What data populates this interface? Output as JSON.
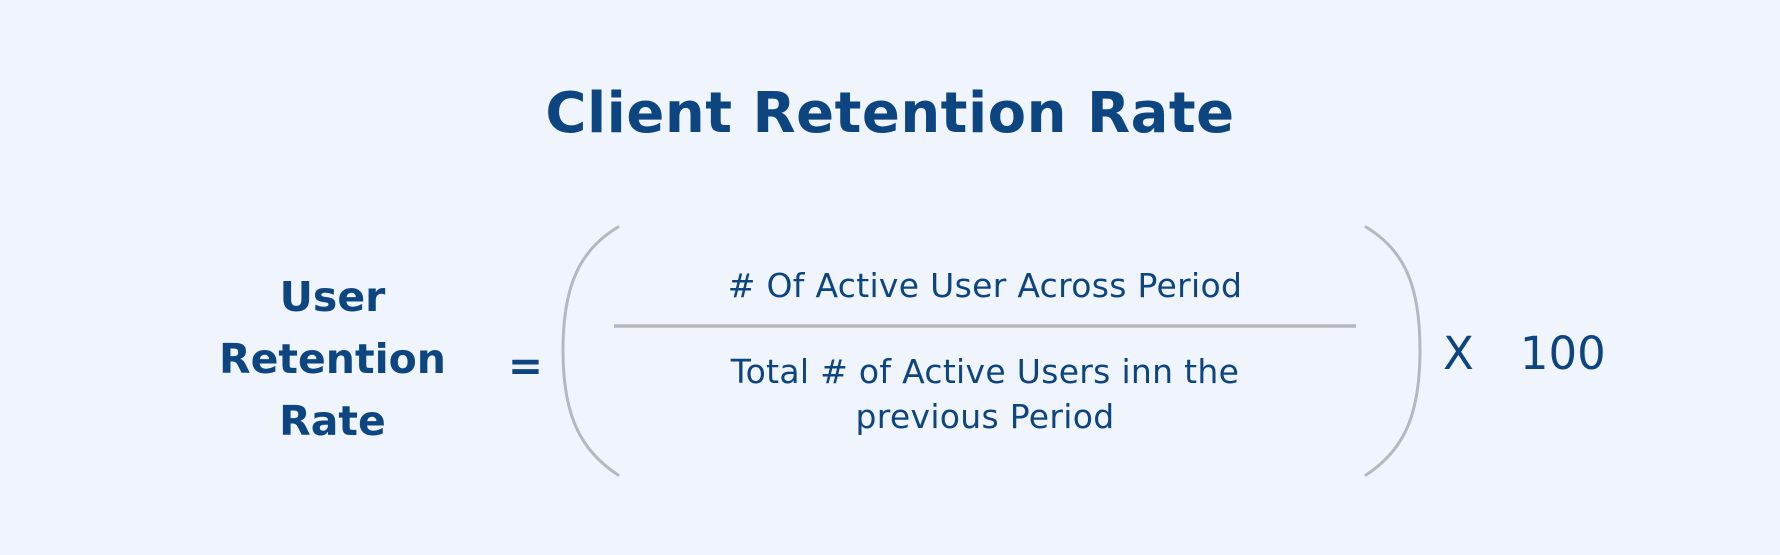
{
  "title": "Client Retention Rate",
  "formula": {
    "lhs_lines": [
      "User",
      "Retention",
      "Rate"
    ],
    "equals": "=",
    "numerator": "# Of Active User Across Period",
    "denominator_lines": [
      "Total # of Active Users inn the",
      "previous Period"
    ],
    "multiply_symbol": "X",
    "multiplier": "100"
  },
  "colors": {
    "background": "#f0f4fd",
    "text": "#0d4581",
    "rule": "#b5b8be"
  }
}
